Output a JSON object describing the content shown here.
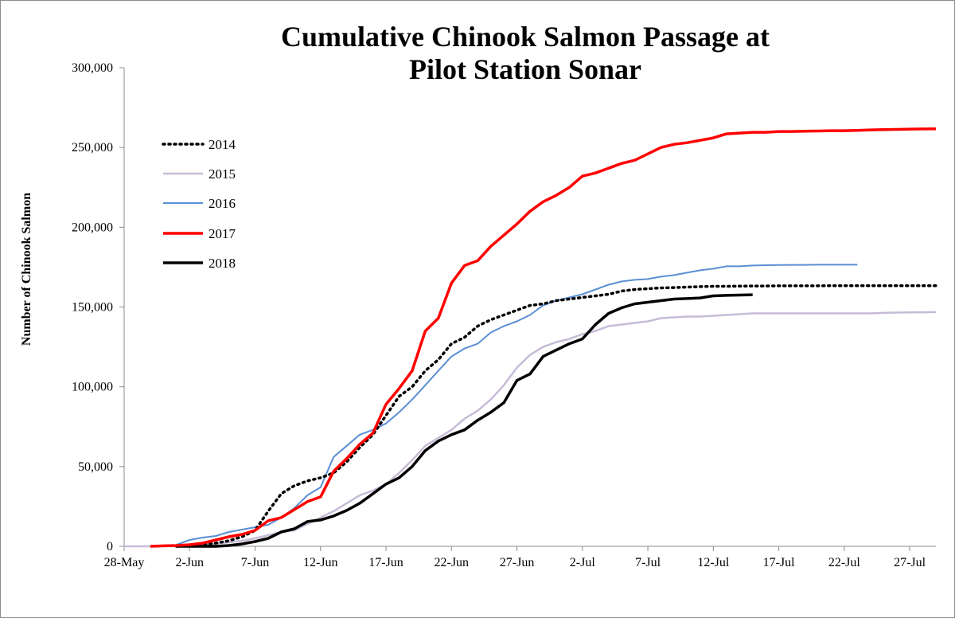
{
  "chart_data": {
    "type": "line",
    "title": "Cumulative Chinook Salmon Passage at",
    "title_line2": "Pilot Station Sonar",
    "xlabel": "",
    "ylabel": "Number of Chinook Salmon",
    "ylim": [
      0,
      300000
    ],
    "xlim_day_offsets": [
      0,
      62
    ],
    "y_ticks": [
      0,
      50000,
      100000,
      150000,
      200000,
      250000,
      300000
    ],
    "y_tick_labels": [
      "0",
      "50,000",
      "100,000",
      "150,000",
      "200,000",
      "250,000",
      "300,000"
    ],
    "x_ticks": [
      0,
      5,
      10,
      15,
      20,
      25,
      30,
      35,
      40,
      45,
      50,
      55,
      60
    ],
    "x_tick_labels": [
      "28-May",
      "2-Jun",
      "7-Jun",
      "12-Jun",
      "17-Jun",
      "22-Jun",
      "27-Jun",
      "2-Jul",
      "7-Jul",
      "12-Jul",
      "17-Jul",
      "22-Jul",
      "27-Jul"
    ],
    "grid": false,
    "legend": "left-upper",
    "series": [
      {
        "name": "2014",
        "color": "#000000",
        "style": "dotted",
        "x": [
          4,
          5,
          6,
          7,
          8,
          9,
          10,
          11,
          12,
          13,
          14,
          15,
          16,
          17,
          18,
          19,
          20,
          21,
          22,
          23,
          24,
          25,
          26,
          27,
          28,
          29,
          30,
          31,
          32,
          33,
          34,
          35,
          36,
          37,
          38,
          39,
          40,
          41,
          42,
          43,
          44,
          45,
          46,
          47,
          48,
          49,
          50,
          51,
          52,
          53,
          54,
          55,
          56,
          57,
          58,
          59,
          60,
          61,
          62
        ],
        "values": [
          0,
          300,
          1000,
          2000,
          3500,
          6000,
          10000,
          22000,
          33000,
          38000,
          41000,
          43000,
          46000,
          53000,
          62000,
          70000,
          82000,
          94000,
          100000,
          110000,
          117000,
          127000,
          131000,
          138000,
          142000,
          145000,
          148000,
          151000,
          152000,
          154000,
          155000,
          156000,
          157000,
          158000,
          160000,
          161000,
          161500,
          162000,
          162200,
          162500,
          162800,
          163000,
          163000,
          163100,
          163200,
          163200,
          163300,
          163300,
          163300,
          163300,
          163400,
          163400,
          163400,
          163400,
          163400,
          163400,
          163400,
          163400,
          163400
        ]
      },
      {
        "name": "2015",
        "color": "#c7bcd6",
        "style": "solid",
        "x": [
          0,
          1,
          2,
          3,
          4,
          5,
          6,
          7,
          8,
          9,
          10,
          11,
          12,
          13,
          14,
          15,
          16,
          17,
          18,
          19,
          20,
          21,
          22,
          23,
          24,
          25,
          26,
          27,
          28,
          29,
          30,
          31,
          32,
          33,
          34,
          35,
          36,
          37,
          38,
          39,
          40,
          41,
          42,
          43,
          44,
          45,
          46,
          47,
          48,
          49,
          50,
          51,
          52,
          53,
          54,
          55,
          56,
          57,
          58,
          59,
          60,
          61,
          62
        ],
        "values": [
          0,
          0,
          0,
          0,
          100,
          300,
          700,
          1500,
          2500,
          3500,
          5000,
          7000,
          9000,
          10000,
          14000,
          18000,
          22000,
          27000,
          32000,
          35000,
          39000,
          46000,
          54000,
          63000,
          68000,
          73000,
          80000,
          85000,
          92000,
          101000,
          112000,
          120000,
          125000,
          128000,
          130000,
          133000,
          135000,
          138000,
          139000,
          140000,
          141000,
          143000,
          143500,
          144000,
          144000,
          144500,
          145000,
          145500,
          146000,
          146000,
          146000,
          146000,
          146000,
          146000,
          146000,
          146000,
          146000,
          146000,
          146300,
          146500,
          146600,
          146700,
          146800
        ]
      },
      {
        "name": "2016",
        "color": "#5b8fd4",
        "style": "solid",
        "x": [
          4,
          5,
          6,
          7,
          8,
          9,
          10,
          11,
          12,
          13,
          14,
          15,
          16,
          17,
          18,
          19,
          20,
          21,
          22,
          23,
          24,
          25,
          26,
          27,
          28,
          29,
          30,
          31,
          32,
          33,
          34,
          35,
          36,
          37,
          38,
          39,
          40,
          41,
          42,
          43,
          44,
          45,
          46,
          47,
          48,
          49,
          50,
          51,
          52,
          53,
          54,
          55,
          56
        ],
        "values": [
          1000,
          4000,
          5500,
          6500,
          9000,
          10500,
          12000,
          13500,
          18000,
          24000,
          32000,
          37000,
          56000,
          63000,
          70000,
          73000,
          77000,
          84000,
          92000,
          101000,
          110000,
          119000,
          124000,
          127000,
          134000,
          138000,
          141000,
          145000,
          151000,
          154000,
          156000,
          158000,
          161000,
          164000,
          166000,
          167000,
          167500,
          169000,
          170000,
          171500,
          173000,
          174000,
          175500,
          175500,
          176000,
          176200,
          176300,
          176400,
          176400,
          176500,
          176500,
          176500,
          176500
        ]
      },
      {
        "name": "2017",
        "color": "#ff0000",
        "style": "solid",
        "x": [
          2,
          3,
          4,
          5,
          6,
          7,
          8,
          9,
          10,
          11,
          12,
          13,
          14,
          15,
          16,
          17,
          18,
          19,
          20,
          21,
          22,
          23,
          24,
          25,
          26,
          27,
          28,
          29,
          30,
          31,
          32,
          33,
          34,
          35,
          36,
          37,
          38,
          39,
          40,
          41,
          42,
          43,
          44,
          45,
          46,
          47,
          48,
          49,
          50,
          51,
          52,
          53,
          54,
          55,
          56,
          57,
          58,
          59,
          60,
          61,
          62
        ],
        "values": [
          0,
          300,
          500,
          1000,
          2000,
          4000,
          6000,
          7500,
          10000,
          16000,
          18000,
          23000,
          28000,
          31000,
          47000,
          55000,
          64000,
          71000,
          89000,
          99000,
          110000,
          135000,
          143000,
          165000,
          176000,
          179000,
          188000,
          195000,
          202000,
          210000,
          216000,
          220000,
          225000,
          232000,
          234000,
          237000,
          240000,
          242000,
          246000,
          250000,
          252000,
          253000,
          254500,
          256000,
          258500,
          259000,
          259500,
          259500,
          260000,
          260000,
          260200,
          260300,
          260500,
          260500,
          260700,
          261000,
          261200,
          261300,
          261500,
          261600,
          261700
        ]
      },
      {
        "name": "2018",
        "color": "#000000",
        "style": "solid",
        "x": [
          4,
          5,
          6,
          7,
          8,
          9,
          10,
          11,
          12,
          13,
          14,
          15,
          16,
          17,
          18,
          19,
          20,
          21,
          22,
          23,
          24,
          25,
          26,
          27,
          28,
          29,
          30,
          31,
          32,
          33,
          34,
          35,
          36,
          37,
          38,
          39,
          40,
          41,
          42,
          43,
          44,
          45,
          46,
          47,
          48
        ],
        "values": [
          0,
          0,
          0,
          0,
          500,
          1500,
          3000,
          5000,
          9000,
          11000,
          15500,
          16500,
          19000,
          22500,
          27000,
          33000,
          39000,
          43000,
          50000,
          60000,
          66000,
          70000,
          73000,
          79000,
          84000,
          90000,
          104000,
          108000,
          119000,
          123000,
          127000,
          130000,
          139000,
          146000,
          149500,
          152000,
          153000,
          154000,
          155000,
          155300,
          155700,
          157000,
          157300,
          157500,
          157700
        ]
      }
    ]
  }
}
